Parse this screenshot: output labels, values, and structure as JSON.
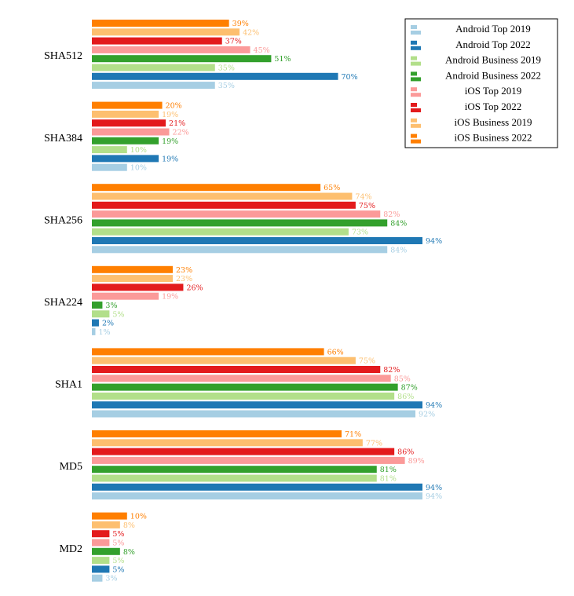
{
  "chart_data": {
    "type": "bar",
    "orientation": "horizontal",
    "categories": [
      "SHA512",
      "SHA384",
      "SHA256",
      "SHA224",
      "SHA1",
      "MD5",
      "MD2"
    ],
    "series": [
      {
        "name": "Android Top 2019",
        "color": "#a6cee3",
        "values": [
          35,
          10,
          84,
          1,
          92,
          94,
          3
        ]
      },
      {
        "name": "Android Top 2022",
        "color": "#1f78b4",
        "values": [
          70,
          19,
          94,
          2,
          94,
          94,
          5
        ]
      },
      {
        "name": "Android Business 2019",
        "color": "#b2df8a",
        "values": [
          35,
          10,
          73,
          5,
          86,
          81,
          5
        ]
      },
      {
        "name": "Android Business 2022",
        "color": "#33a02c",
        "values": [
          51,
          19,
          84,
          3,
          87,
          81,
          8
        ]
      },
      {
        "name": "iOS Top 2019",
        "color": "#fb9a99",
        "values": [
          45,
          22,
          82,
          19,
          85,
          89,
          5
        ]
      },
      {
        "name": "iOS Top 2022",
        "color": "#e31a1c",
        "values": [
          37,
          21,
          75,
          26,
          82,
          86,
          5
        ]
      },
      {
        "name": "iOS Business 2019",
        "color": "#fdbf6f",
        "values": [
          42,
          19,
          74,
          23,
          75,
          77,
          8
        ]
      },
      {
        "name": "iOS Business 2022",
        "color": "#ff7f00",
        "values": [
          39,
          20,
          65,
          23,
          66,
          71,
          10
        ]
      }
    ],
    "value_suffix": "%",
    "xlim": [
      0,
      100
    ],
    "grid": false,
    "legend": "top-right",
    "title": "",
    "xlabel": "",
    "ylabel": ""
  }
}
